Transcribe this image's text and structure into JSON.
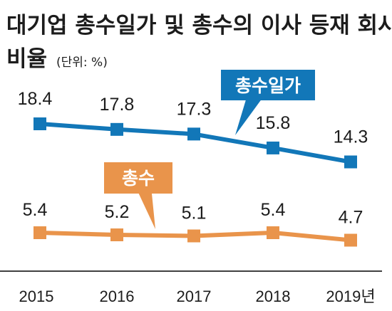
{
  "chart_data": {
    "type": "line",
    "title_line1": "대기업 총수일가 및 총수의 이사 등재 회사",
    "title_line2": "비율",
    "unit": "(단위: %)",
    "categories": [
      "2015",
      "2016",
      "2017",
      "2018",
      "2019년"
    ],
    "series": [
      {
        "name": "총수일가",
        "values": [
          18.4,
          17.8,
          17.3,
          15.8,
          14.3
        ],
        "color": "#1277b8"
      },
      {
        "name": "총수",
        "values": [
          5.4,
          5.2,
          5.1,
          5.4,
          4.7
        ],
        "color": "#e9944b"
      }
    ],
    "value_labels": [
      [
        "18.4",
        "17.8",
        "17.3",
        "15.8",
        "14.3"
      ],
      [
        "5.4",
        "5.2",
        "5.1",
        "5.4",
        "4.7"
      ]
    ],
    "grid": false,
    "axis_line_color": "#000000"
  }
}
